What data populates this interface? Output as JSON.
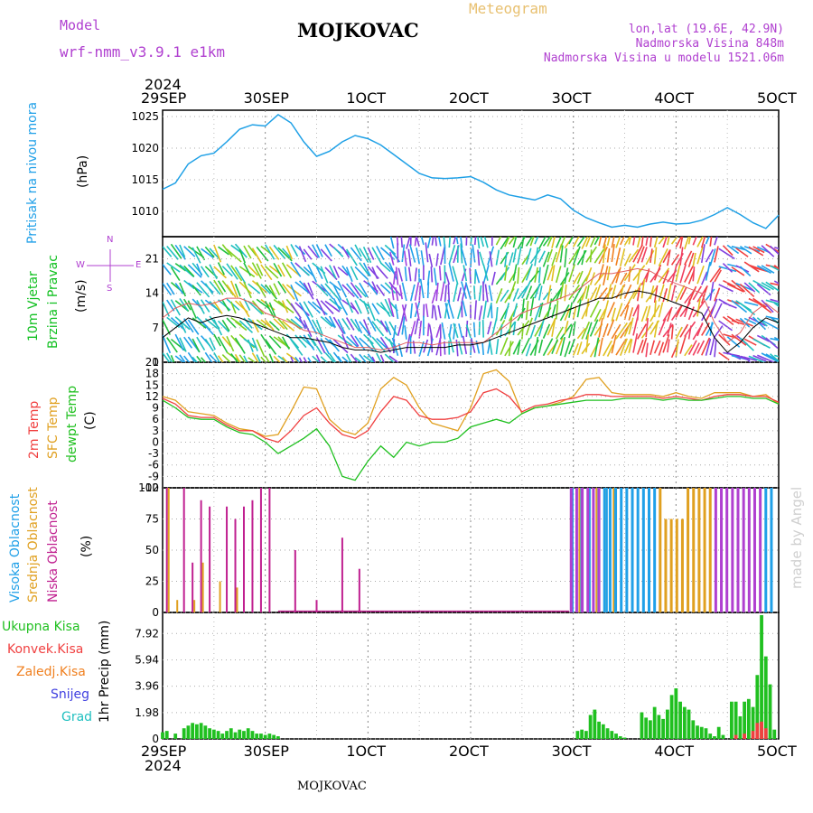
{
  "header": {
    "model_label": "Model",
    "model_name": "wrf-nmm_v3.9.1  e1km",
    "title": "MOJKOVAC",
    "meteogram_label": "Meteogram",
    "coords": "lon,lat (19.6E, 42.9N)",
    "altitude": "Nadmorska Visina 848m",
    "model_altitude": "Nadmorska Visina u modelu 1521.06m",
    "credit": "made by Angel",
    "footer": "MOJKOVAC"
  },
  "colors": {
    "pressure": "#1ea0e6",
    "wind_label": "#10c020",
    "temp2m": "#f04040",
    "sfc_temp": "#e0a020",
    "dewpt": "#20c020",
    "high_cloud": "#20a0e8",
    "mid_cloud": "#e0a020",
    "low_cloud": "#c02090",
    "total_rain": "#20c020",
    "conv_rain": "#f04040",
    "frz_rain": "#f08020",
    "snow": "#4040e0",
    "hail": "#20c0c0",
    "purple": "#b040d0"
  },
  "time_axis": {
    "year": "2024",
    "labels": [
      "29SEP",
      "30SEP",
      "1OCT",
      "2OCT",
      "3OCT",
      "4OCT",
      "5OCT"
    ]
  },
  "panels": {
    "pressure": {
      "label1": "Pritisak na nivou mora",
      "unit": "(hPa)"
    },
    "wind": {
      "label1": "10m Vjetar",
      "label2": "Brzina i Pravac",
      "unit": "(m/s)",
      "compass": {
        "n": "N",
        "w": "W",
        "e": "E",
        "s": "S"
      }
    },
    "temp": {
      "label1": "2m Temp",
      "label2": "SFC Temp",
      "label3": "dewpt Temp",
      "unit": "(C)"
    },
    "cloud": {
      "label1": "Visoka Oblacnost",
      "label2": "Srednja Oblacnost",
      "label3": "Niska Oblacnost",
      "unit": "(%)"
    },
    "precip": {
      "labels": [
        "Ukupna Kisa",
        "Konvek.Kisa",
        "Zaledj.Kisa",
        "Snijeg",
        "Grad"
      ],
      "unit": "1hr Precip (mm)"
    }
  },
  "chart_data": [
    {
      "type": "line",
      "title": "",
      "ylabel": "(hPa)",
      "ylim": [
        1006,
        1026
      ],
      "yticks": [
        "1010",
        "1015",
        "1020",
        "1025"
      ],
      "x_hours": [
        0,
        3,
        6,
        9,
        12,
        15,
        18,
        21,
        24,
        27,
        30,
        33,
        36,
        39,
        42,
        45,
        48,
        51,
        54,
        57,
        60,
        63,
        66,
        69,
        72,
        75,
        78,
        81,
        84,
        87,
        90,
        93,
        96,
        99,
        102,
        105,
        108,
        111,
        114,
        117,
        120,
        123,
        126,
        129,
        132,
        135,
        138,
        141,
        144
      ],
      "series": [
        {
          "values": [
            1013.5,
            1014.5,
            1017.5,
            1018.8,
            1019.2,
            1021,
            1023,
            1023.7,
            1023.5,
            1025.3,
            1024,
            1021,
            1018.7,
            1019.5,
            1021,
            1022,
            1021.5,
            1020.5,
            1019,
            1017.5,
            1016,
            1015.3,
            1015.2,
            1015.3,
            1015.5,
            1014.6,
            1013.4,
            1012.6,
            1012.2,
            1011.8,
            1012.6,
            1012,
            1010.2,
            1009,
            1008.2,
            1007.5,
            1007.8,
            1007.5,
            1008,
            1008.3,
            1008,
            1008.1,
            1008.6,
            1009.5,
            1010.6,
            1009.5,
            1008.2,
            1007.3,
            1009.4
          ]
        }
      ]
    },
    {
      "type": "line",
      "title": "",
      "ylabel": "(m/s)",
      "ylim": [
        0,
        25.5
      ],
      "yticks": [
        "0",
        "7",
        "14",
        "21"
      ],
      "x_hours": [
        0,
        3,
        6,
        9,
        12,
        15,
        18,
        21,
        24,
        27,
        30,
        33,
        36,
        39,
        42,
        45,
        48,
        51,
        54,
        57,
        60,
        63,
        66,
        69,
        72,
        75,
        78,
        81,
        84,
        87,
        90,
        93,
        96,
        99,
        102,
        105,
        108,
        111,
        114,
        117,
        120,
        123,
        126,
        129,
        132,
        135,
        138,
        141,
        144
      ],
      "series": [
        {
          "values": [
            9,
            11,
            12,
            11.5,
            12,
            13,
            13,
            12,
            10,
            9,
            8,
            6.5,
            6,
            5,
            4,
            3,
            3,
            2.5,
            3,
            4,
            4,
            3.5,
            4,
            4,
            4,
            4,
            6,
            8,
            10,
            11,
            12,
            13,
            14,
            16,
            18,
            18,
            18.5,
            19,
            18.5,
            17,
            16,
            15,
            14,
            8,
            4,
            6,
            10,
            12,
            10
          ]
        },
        {
          "values": [
            5,
            7,
            9,
            8,
            9,
            9.5,
            9,
            8,
            7,
            6,
            5,
            5,
            4.5,
            4,
            3,
            2.5,
            2.5,
            2,
            2.5,
            3,
            3,
            3,
            3,
            3.5,
            3.5,
            4,
            5,
            6,
            7,
            8,
            9,
            10,
            11,
            12,
            13,
            13,
            14,
            14.5,
            14,
            13,
            12,
            11,
            10,
            5,
            2,
            4,
            7,
            9,
            8
          ]
        }
      ]
    },
    {
      "type": "line",
      "title": "",
      "ylabel": "(C)",
      "ylim": [
        -12,
        21
      ],
      "yticks": [
        "-12",
        "-9",
        "-6",
        "-3",
        "0",
        "3",
        "6",
        "9",
        "12",
        "15",
        "18",
        "21"
      ],
      "x_hours": [
        0,
        3,
        6,
        9,
        12,
        15,
        18,
        21,
        24,
        27,
        30,
        33,
        36,
        39,
        42,
        45,
        48,
        51,
        54,
        57,
        60,
        63,
        66,
        69,
        72,
        75,
        78,
        81,
        84,
        87,
        90,
        93,
        96,
        99,
        102,
        105,
        108,
        111,
        114,
        117,
        120,
        123,
        126,
        129,
        132,
        135,
        138,
        141,
        144
      ],
      "series": [
        {
          "values": [
            12,
            11,
            8,
            7.5,
            7,
            5,
            3.5,
            3,
            1.5,
            2,
            8,
            14.5,
            14,
            6,
            3,
            2,
            5,
            14,
            17,
            15,
            9,
            5,
            4,
            3,
            9,
            18,
            19,
            16,
            7.5,
            9,
            9.5,
            10.5,
            12,
            16.5,
            17,
            13,
            12.5,
            12.5,
            12.5,
            12,
            13,
            12,
            11.5,
            13,
            13,
            13,
            12,
            12.5,
            10
          ]
        },
        {
          "values": [
            11.5,
            10,
            7,
            6.5,
            6.5,
            4.5,
            3,
            3,
            1,
            0,
            3,
            7,
            9,
            5,
            2,
            1,
            3,
            8,
            12,
            11,
            7,
            6,
            6,
            6.5,
            8,
            13,
            14,
            12,
            8,
            9.5,
            10,
            11,
            11.5,
            12.5,
            12.5,
            12,
            12,
            12,
            12,
            11.5,
            12,
            11.5,
            11,
            12,
            12.5,
            12.5,
            12,
            12,
            10.5
          ]
        },
        {
          "values": [
            11,
            9,
            6.5,
            6,
            6,
            4,
            2.5,
            2,
            0,
            -3,
            -1,
            1,
            3.5,
            -1,
            -9,
            -10,
            -5,
            -1,
            -4,
            0,
            -1,
            0,
            0,
            1,
            4,
            5,
            6,
            5,
            7.5,
            9,
            9.5,
            10,
            10.5,
            11,
            11,
            11,
            11.5,
            11.5,
            11.5,
            11,
            11.5,
            11,
            11,
            11.5,
            12,
            12,
            11.5,
            11.5,
            10
          ]
        }
      ]
    },
    {
      "type": "bar",
      "title": "",
      "ylabel": "(%)",
      "ylim": [
        0,
        100
      ],
      "yticks": [
        "0",
        "25",
        "50",
        "75",
        "100"
      ],
      "note": "Cloud cover: low/mid partial before 30SEP 12h, clear 1OCT-2OCT 12h, overcast high+mid+low from 2OCT 12h to 5OCT",
      "categories_hours": [
        1,
        3,
        5,
        7,
        9,
        11,
        13,
        15,
        17,
        19,
        21,
        23,
        25,
        27,
        31,
        36,
        42,
        46,
        48,
        95,
        97,
        99,
        101,
        103,
        105
      ],
      "series": [
        {
          "name": "Niska Oblacnost",
          "values": [
            100,
            0,
            100,
            40,
            90,
            85,
            0,
            85,
            75,
            85,
            90,
            100,
            100,
            0,
            50,
            10,
            60,
            35,
            0,
            0,
            0,
            0,
            0,
            0,
            0
          ]
        },
        {
          "name": "Srednja Oblacnost",
          "values": [
            100,
            10,
            0,
            10,
            40,
            0,
            25,
            0,
            20,
            0,
            0,
            0,
            0,
            0,
            0,
            0,
            0,
            0,
            0,
            85,
            100,
            100,
            100,
            100,
            100
          ]
        },
        {
          "name": "Visoka Oblacnost",
          "values": [
            0,
            0,
            0,
            0,
            0,
            0,
            0,
            0,
            0,
            0,
            0,
            0,
            0,
            0,
            0,
            0,
            0,
            0,
            0,
            100,
            100,
            100,
            100,
            100,
            100
          ]
        }
      ]
    },
    {
      "type": "bar",
      "title": "",
      "ylabel": "1hr Precip (mm)",
      "ylim": [
        0,
        9.5
      ],
      "yticks": [
        "0",
        "1.98",
        "3.96",
        "5.94",
        "7.92"
      ],
      "series": [
        {
          "name": "Ukupna Kisa",
          "x_hours": [
            0,
            1,
            3,
            5,
            6,
            7,
            8,
            9,
            10,
            11,
            12,
            13,
            14,
            15,
            16,
            17,
            18,
            19,
            20,
            21,
            22,
            23,
            24,
            25,
            26,
            27,
            97,
            98,
            99,
            100,
            101,
            102,
            103,
            104,
            105,
            106,
            107,
            108,
            112,
            113,
            114,
            115,
            116,
            117,
            118,
            119,
            120,
            121,
            122,
            123,
            124,
            125,
            126,
            127,
            128,
            129,
            130,
            131,
            133,
            134,
            135,
            136,
            137,
            138,
            139,
            140,
            141,
            142,
            143
          ],
          "values": [
            0.5,
            0.6,
            0.4,
            0.8,
            1,
            1.2,
            1.1,
            1.2,
            1,
            0.8,
            0.7,
            0.6,
            0.4,
            0.6,
            0.8,
            0.5,
            0.7,
            0.6,
            0.8,
            0.6,
            0.4,
            0.4,
            0.3,
            0.4,
            0.3,
            0.2,
            0.6,
            0.7,
            0.6,
            1.8,
            2.2,
            1.3,
            1.1,
            0.8,
            0.6,
            0.4,
            0.2,
            0.1,
            2,
            1.6,
            1.4,
            2.4,
            1.8,
            1.5,
            2.2,
            3.3,
            3.8,
            2.8,
            2.4,
            2.2,
            1.4,
            1,
            0.9,
            0.8,
            0.4,
            0.2,
            0.9,
            0.3,
            2.8,
            2.8,
            1.7,
            2.8,
            3,
            2.4,
            4.8,
            9.3,
            6.2,
            4.1,
            0.7
          ]
        },
        {
          "name": "Konvek.Kisa",
          "x_hours": [
            134,
            136,
            138,
            139,
            140,
            141
          ],
          "values": [
            0.3,
            0.4,
            0.6,
            1.2,
            1.3,
            0.8
          ]
        }
      ]
    }
  ]
}
